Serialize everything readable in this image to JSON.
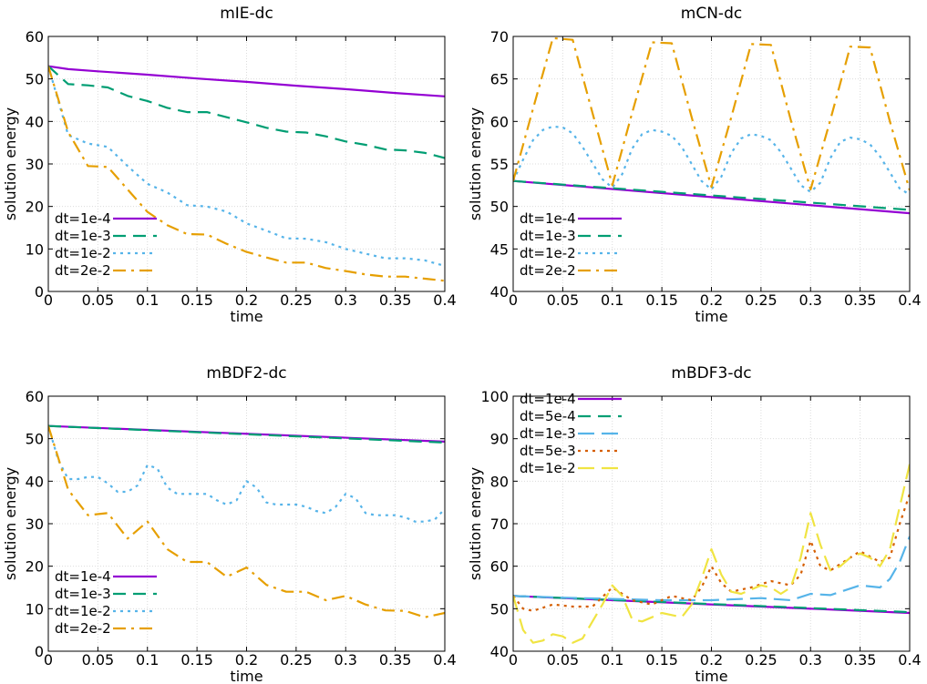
{
  "chart_data": [
    {
      "type": "line",
      "title": "mIE-dc",
      "xlabel": "time",
      "ylabel": "solution energy",
      "xlim": [
        0,
        0.4
      ],
      "ylim": [
        0,
        60
      ],
      "xticks": [
        "0",
        "0.05",
        "0.1",
        "0.15",
        "0.2",
        "0.25",
        "0.3",
        "0.35",
        "0.4"
      ],
      "yticks": [
        "0",
        "10",
        "20",
        "30",
        "40",
        "50",
        "60"
      ],
      "grid": true,
      "legend_position": "bottom-left",
      "series": [
        {
          "name": "dt=1e-4",
          "color": "#9400d3",
          "dash": "solid",
          "x": [
            0,
            0.02,
            0.05,
            0.1,
            0.15,
            0.2,
            0.25,
            0.3,
            0.35,
            0.4
          ],
          "y": [
            53,
            52.3,
            51.8,
            51,
            50.1,
            49.3,
            48.4,
            47.6,
            46.7,
            45.9
          ]
        },
        {
          "name": "dt=1e-3",
          "color": "#009e73",
          "dash": "dash",
          "x": [
            0,
            0.02,
            0.04,
            0.06,
            0.08,
            0.1,
            0.12,
            0.14,
            0.16,
            0.18,
            0.2,
            0.22,
            0.24,
            0.26,
            0.28,
            0.3,
            0.32,
            0.34,
            0.36,
            0.38,
            0.4
          ],
          "y": [
            53,
            48.8,
            48.5,
            48,
            46,
            44.8,
            43.2,
            42.2,
            42.2,
            41,
            39.8,
            38.5,
            37.6,
            37.4,
            36.5,
            35.3,
            34.5,
            33.4,
            33.2,
            32.6,
            31.4
          ]
        },
        {
          "name": "dt=1e-2",
          "color": "#56b4e9",
          "dash": "dot",
          "x": [
            0,
            0.02,
            0.04,
            0.06,
            0.08,
            0.1,
            0.12,
            0.14,
            0.16,
            0.18,
            0.2,
            0.22,
            0.24,
            0.26,
            0.28,
            0.3,
            0.32,
            0.34,
            0.36,
            0.38,
            0.4
          ],
          "y": [
            53,
            36.8,
            34.8,
            34,
            29.5,
            25.3,
            23.3,
            20.3,
            20,
            18.8,
            16,
            14.3,
            12.5,
            12.4,
            11.6,
            10,
            8.9,
            7.8,
            7.8,
            7.3,
            6
          ]
        },
        {
          "name": "dt=2e-2",
          "color": "#e69f00",
          "dash": "dashdot",
          "x": [
            0,
            0.02,
            0.04,
            0.06,
            0.08,
            0.1,
            0.12,
            0.14,
            0.16,
            0.18,
            0.2,
            0.22,
            0.24,
            0.26,
            0.28,
            0.3,
            0.32,
            0.34,
            0.36,
            0.38,
            0.4
          ],
          "y": [
            53,
            37.5,
            29.5,
            29.3,
            24,
            18.7,
            15.6,
            13.5,
            13.4,
            11.2,
            9.3,
            8,
            6.8,
            6.8,
            5.5,
            4.8,
            4,
            3.5,
            3.5,
            3,
            2.5
          ]
        }
      ]
    },
    {
      "type": "line",
      "title": "mCN-dc",
      "xlabel": "time",
      "ylabel": "solution energy",
      "xlim": [
        0,
        0.4
      ],
      "ylim": [
        40,
        70
      ],
      "xticks": [
        "0",
        "0.05",
        "0.1",
        "0.15",
        "0.2",
        "0.25",
        "0.3",
        "0.35",
        "0.4"
      ],
      "yticks": [
        "40",
        "45",
        "50",
        "55",
        "60",
        "65",
        "70"
      ],
      "grid": true,
      "legend_position": "bottom-left",
      "series": [
        {
          "name": "dt=1e-4",
          "color": "#9400d3",
          "dash": "solid",
          "x": [
            0,
            0.4
          ],
          "y": [
            53,
            49.2
          ]
        },
        {
          "name": "dt=1e-3",
          "color": "#009e73",
          "dash": "dash",
          "x": [
            0,
            0.4
          ],
          "y": [
            53,
            49.6
          ]
        },
        {
          "name": "dt=1e-2",
          "color": "#56b4e9",
          "dash": "dot",
          "x": [
            0,
            0.01,
            0.02,
            0.03,
            0.04,
            0.05,
            0.06,
            0.07,
            0.08,
            0.09,
            0.1,
            0.11,
            0.12,
            0.13,
            0.14,
            0.15,
            0.16,
            0.17,
            0.18,
            0.19,
            0.2,
            0.21,
            0.22,
            0.23,
            0.24,
            0.25,
            0.26,
            0.27,
            0.28,
            0.29,
            0.3,
            0.31,
            0.32,
            0.33,
            0.34,
            0.35,
            0.36,
            0.37,
            0.38,
            0.39,
            0.4
          ],
          "y": [
            53,
            55.5,
            57.8,
            59,
            59.4,
            59.3,
            58.6,
            57,
            55.1,
            53.2,
            52.2,
            53.8,
            56.8,
            58.5,
            59,
            58.8,
            58.3,
            57,
            55,
            53,
            52,
            53.5,
            56.3,
            58,
            58.5,
            58.3,
            57.8,
            56.4,
            54.5,
            52.5,
            51.7,
            52.8,
            55.7,
            57.6,
            58.1,
            57.9,
            57.3,
            55.9,
            54,
            52.1,
            51.4
          ]
        },
        {
          "name": "dt=2e-2",
          "color": "#e69f00",
          "dash": "dashdot",
          "x": [
            0,
            0.02,
            0.04,
            0.06,
            0.08,
            0.1,
            0.12,
            0.14,
            0.16,
            0.18,
            0.2,
            0.22,
            0.24,
            0.26,
            0.28,
            0.3,
            0.32,
            0.34,
            0.36,
            0.38,
            0.4
          ],
          "y": [
            53,
            61.5,
            69.8,
            69.6,
            61,
            52.5,
            61,
            69.3,
            69.2,
            60.5,
            52.3,
            60.5,
            69.1,
            69,
            60.2,
            52,
            60.2,
            68.8,
            68.7,
            60,
            51.9
          ]
        }
      ]
    },
    {
      "type": "line",
      "title": "mBDF2-dc",
      "xlabel": "time",
      "ylabel": "solution energy",
      "xlim": [
        0,
        0.4
      ],
      "ylim": [
        0,
        60
      ],
      "xticks": [
        "0",
        "0.05",
        "0.1",
        "0.15",
        "0.2",
        "0.25",
        "0.3",
        "0.35",
        "0.4"
      ],
      "yticks": [
        "0",
        "10",
        "20",
        "30",
        "40",
        "50",
        "60"
      ],
      "grid": true,
      "legend_position": "bottom-left",
      "series": [
        {
          "name": "dt=1e-4",
          "color": "#9400d3",
          "dash": "solid",
          "x": [
            0,
            0.4
          ],
          "y": [
            53,
            49.3
          ]
        },
        {
          "name": "dt=1e-3",
          "color": "#009e73",
          "dash": "dash",
          "x": [
            0,
            0.4
          ],
          "y": [
            53,
            49.1
          ]
        },
        {
          "name": "dt=1e-2",
          "color": "#56b4e9",
          "dash": "dot",
          "x": [
            0,
            0.01,
            0.02,
            0.03,
            0.04,
            0.05,
            0.06,
            0.07,
            0.08,
            0.09,
            0.1,
            0.11,
            0.12,
            0.13,
            0.14,
            0.15,
            0.16,
            0.17,
            0.18,
            0.19,
            0.2,
            0.21,
            0.22,
            0.23,
            0.24,
            0.25,
            0.26,
            0.27,
            0.28,
            0.29,
            0.3,
            0.31,
            0.32,
            0.33,
            0.34,
            0.35,
            0.36,
            0.37,
            0.38,
            0.39,
            0.4
          ],
          "y": [
            53,
            45,
            40.5,
            40.5,
            41,
            41,
            39.5,
            37.5,
            37.5,
            39,
            43.8,
            43,
            38.5,
            37,
            37,
            37,
            37,
            35.5,
            34.5,
            35.5,
            40,
            38.5,
            35,
            34.5,
            34.5,
            34.5,
            34,
            33,
            32.5,
            34,
            37,
            36,
            32.5,
            32,
            32,
            32,
            31.5,
            30.5,
            30.5,
            31,
            33.5
          ]
        },
        {
          "name": "dt=2e-2",
          "color": "#e69f00",
          "dash": "dashdot",
          "x": [
            0,
            0.02,
            0.04,
            0.06,
            0.08,
            0.1,
            0.12,
            0.14,
            0.16,
            0.18,
            0.2,
            0.22,
            0.24,
            0.26,
            0.28,
            0.3,
            0.32,
            0.34,
            0.36,
            0.38,
            0.4
          ],
          "y": [
            53,
            38,
            32,
            32.5,
            26.5,
            30.5,
            24,
            21,
            21,
            17.5,
            19.7,
            15.6,
            14,
            14,
            12,
            13,
            11,
            9.6,
            9.5,
            8,
            9
          ]
        }
      ]
    },
    {
      "type": "line",
      "title": "mBDF3-dc",
      "xlabel": "time",
      "ylabel": "solution energy",
      "xlim": [
        0,
        0.4
      ],
      "ylim": [
        40,
        100
      ],
      "xticks": [
        "0",
        "0.05",
        "0.1",
        "0.15",
        "0.2",
        "0.25",
        "0.3",
        "0.35",
        "0.4"
      ],
      "yticks": [
        "40",
        "50",
        "60",
        "70",
        "80",
        "90",
        "100"
      ],
      "grid": true,
      "legend_position": "top-left",
      "series": [
        {
          "name": "dt=1e-4",
          "color": "#9400d3",
          "dash": "solid",
          "x": [
            0,
            0.4
          ],
          "y": [
            53,
            49
          ]
        },
        {
          "name": "dt=5e-4",
          "color": "#009e73",
          "dash": "dash",
          "x": [
            0,
            0.4
          ],
          "y": [
            53,
            49.2
          ]
        },
        {
          "name": "dt=1e-3",
          "color": "#56b4e9",
          "dash": "longdash",
          "x": [
            0,
            0.05,
            0.1,
            0.15,
            0.2,
            0.25,
            0.28,
            0.3,
            0.32,
            0.35,
            0.37,
            0.38,
            0.39,
            0.4
          ],
          "y": [
            53,
            52.6,
            52.3,
            52,
            52,
            52.5,
            52,
            53.5,
            53.2,
            55.5,
            55,
            57,
            61,
            67
          ]
        },
        {
          "name": "dt=5e-3",
          "color": "#d55e00",
          "dash": "dot",
          "x": [
            0,
            0.01,
            0.02,
            0.04,
            0.06,
            0.08,
            0.1,
            0.12,
            0.14,
            0.16,
            0.18,
            0.19,
            0.2,
            0.21,
            0.22,
            0.24,
            0.26,
            0.28,
            0.29,
            0.3,
            0.31,
            0.32,
            0.34,
            0.35,
            0.37,
            0.38,
            0.39,
            0.4
          ],
          "y": [
            53,
            50,
            49.5,
            51,
            50.5,
            50.5,
            55,
            52,
            51,
            53,
            52,
            55,
            60,
            56,
            54,
            55,
            56.5,
            55.5,
            58,
            66,
            60,
            59,
            62,
            63.5,
            61,
            62,
            70,
            77
          ]
        },
        {
          "name": "dt=1e-2",
          "color": "#f0e442",
          "dash": "longdash",
          "x": [
            0,
            0.01,
            0.02,
            0.03,
            0.04,
            0.05,
            0.06,
            0.07,
            0.08,
            0.09,
            0.1,
            0.11,
            0.12,
            0.13,
            0.14,
            0.15,
            0.16,
            0.17,
            0.18,
            0.19,
            0.2,
            0.21,
            0.22,
            0.23,
            0.24,
            0.25,
            0.26,
            0.27,
            0.28,
            0.29,
            0.3,
            0.31,
            0.32,
            0.33,
            0.34,
            0.35,
            0.36,
            0.37,
            0.38,
            0.39,
            0.4
          ],
          "y": [
            53,
            45,
            42,
            42.5,
            44,
            43.5,
            42,
            43,
            47,
            51,
            55.5,
            53,
            47.5,
            47,
            48,
            49,
            48.5,
            48,
            51,
            57,
            64,
            58,
            54,
            53.5,
            54.5,
            55.5,
            55,
            53.5,
            55,
            62,
            72.5,
            65,
            59,
            60,
            62,
            63,
            62,
            60,
            64,
            74,
            84
          ]
        }
      ]
    }
  ]
}
